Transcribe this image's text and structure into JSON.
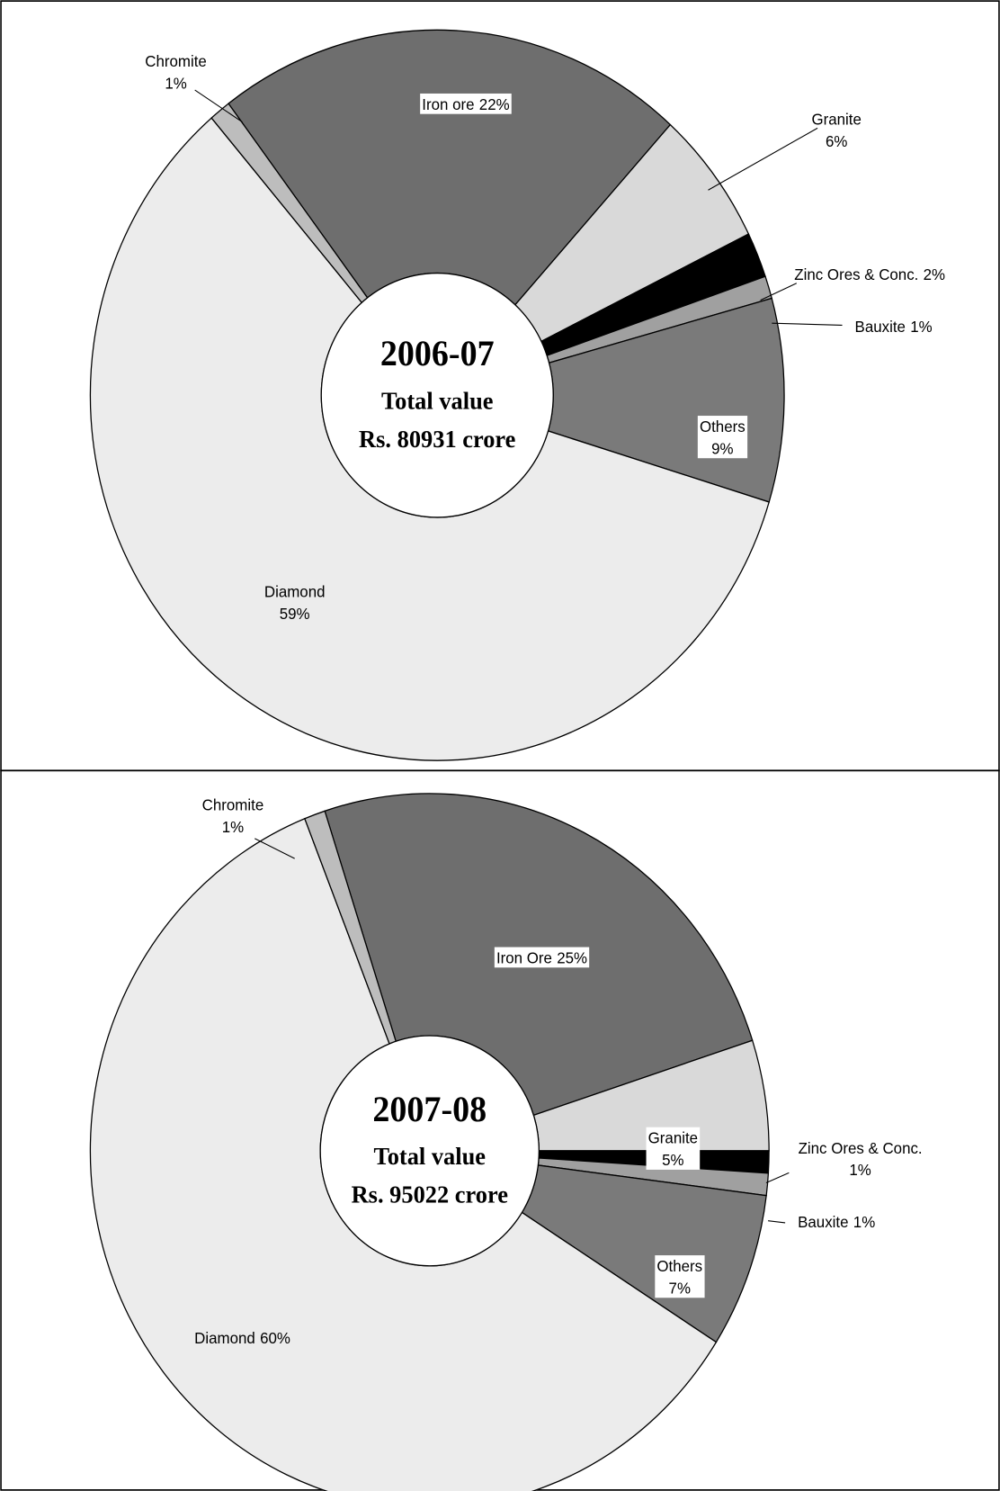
{
  "chart_data": [
    {
      "type": "pie",
      "title": "2006-07",
      "subtitle": "Total value",
      "annotation": "Rs. 80931 crore",
      "categories": [
        "Iron ore",
        "Granite",
        "Zinc Ores & Conc.",
        "Bauxite",
        "Others",
        "Diamond",
        "Chromite"
      ],
      "values": [
        22,
        6,
        2,
        1,
        9,
        59,
        1
      ],
      "value_labels": [
        "22%",
        "6%",
        "2%",
        "1%",
        "9%",
        "59%",
        "1%"
      ],
      "colors": [
        "#6e6e6e",
        "#d9d9d9",
        "#000000",
        "#a0a0a0",
        "#7a7a7a",
        "#ececec",
        "#bdbdbd"
      ]
    },
    {
      "type": "pie",
      "title": "2007-08",
      "subtitle": "Total value",
      "annotation": "Rs. 95022 crore",
      "categories": [
        "Iron Ore",
        "Granite",
        "Zinc Ores & Conc.",
        "Bauxite",
        "Others",
        "Diamond",
        "Chromite"
      ],
      "values": [
        25,
        5,
        1,
        1,
        7,
        60,
        1
      ],
      "value_labels": [
        "25%",
        "5%",
        "1%",
        "1%",
        "7%",
        "60%",
        "1%"
      ],
      "colors": [
        "#6e6e6e",
        "#d9d9d9",
        "#000000",
        "#a0a0a0",
        "#7a7a7a",
        "#ececec",
        "#bdbdbd"
      ]
    }
  ]
}
